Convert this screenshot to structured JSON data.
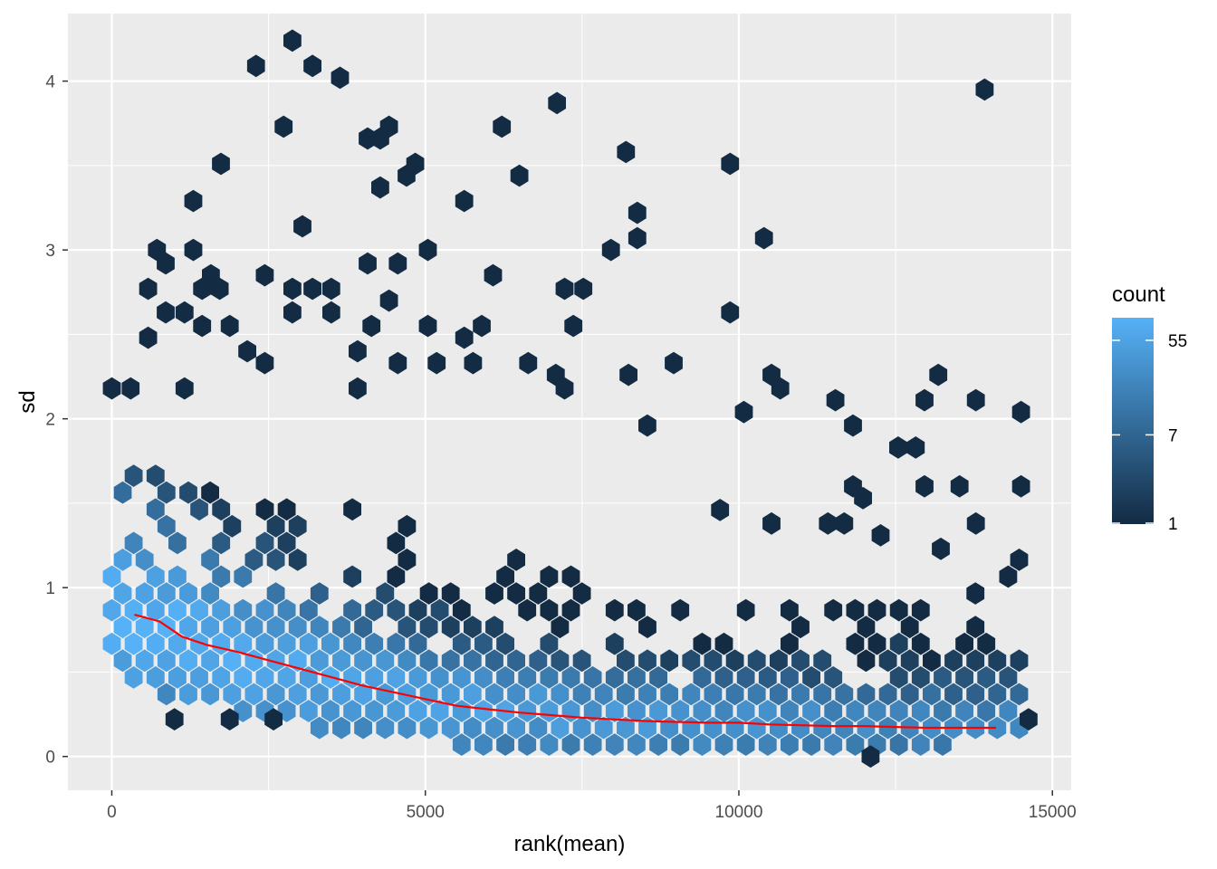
{
  "chart_data": {
    "type": "hexbin",
    "xlabel": "rank(mean)",
    "ylabel": "sd",
    "xlim": [
      -700,
      15300
    ],
    "ylim": [
      -0.2,
      4.4
    ],
    "x_ticks": [
      {
        "value": 0,
        "label": "0"
      },
      {
        "value": 5000,
        "label": "5000"
      },
      {
        "value": 10000,
        "label": "10000"
      },
      {
        "value": 15000,
        "label": "15000"
      }
    ],
    "y_ticks": [
      {
        "value": 0,
        "label": "0"
      },
      {
        "value": 1,
        "label": "1"
      },
      {
        "value": 2,
        "label": "2"
      },
      {
        "value": 3,
        "label": "3"
      },
      {
        "value": 4,
        "label": "4"
      }
    ],
    "grid": true,
    "legend": {
      "title": "count",
      "position": "right",
      "scale": "log",
      "breaks": [
        {
          "value": 1,
          "label": "1"
        },
        {
          "value": 7,
          "label": "7"
        },
        {
          "value": 55,
          "label": "55"
        }
      ],
      "range": [
        1,
        90
      ],
      "color_low": "#132B43",
      "color_high": "#56B1F7"
    },
    "hex_radius": {
      "x": 165,
      "y": 0.0577
    },
    "outlier_points": [
      [
        2880,
        4.24
      ],
      [
        2300,
        4.09
      ],
      [
        3200,
        4.09
      ],
      [
        3640,
        4.02
      ],
      [
        13920,
        3.95
      ],
      [
        7100,
        3.87
      ],
      [
        2740,
        3.73
      ],
      [
        4420,
        3.73
      ],
      [
        6220,
        3.73
      ],
      [
        4080,
        3.66
      ],
      [
        4280,
        3.66
      ],
      [
        8200,
        3.58
      ],
      [
        1740,
        3.51
      ],
      [
        4840,
        3.51
      ],
      [
        9860,
        3.51
      ],
      [
        4700,
        3.44
      ],
      [
        6500,
        3.44
      ],
      [
        4280,
        3.37
      ],
      [
        1300,
        3.29
      ],
      [
        5620,
        3.29
      ],
      [
        8380,
        3.22
      ],
      [
        3040,
        3.14
      ],
      [
        8380,
        3.07
      ],
      [
        10400,
        3.07
      ],
      [
        720,
        3.0
      ],
      [
        1300,
        3.0
      ],
      [
        5040,
        3.0
      ],
      [
        7960,
        3.0
      ],
      [
        860,
        2.92
      ],
      [
        4080,
        2.92
      ],
      [
        4560,
        2.92
      ],
      [
        1580,
        2.85
      ],
      [
        2440,
        2.85
      ],
      [
        6080,
        2.85
      ],
      [
        580,
        2.77
      ],
      [
        1440,
        2.77
      ],
      [
        1720,
        2.77
      ],
      [
        2880,
        2.77
      ],
      [
        3200,
        2.77
      ],
      [
        3500,
        2.77
      ],
      [
        7220,
        2.77
      ],
      [
        7520,
        2.77
      ],
      [
        4420,
        2.7
      ],
      [
        860,
        2.63
      ],
      [
        1160,
        2.63
      ],
      [
        2880,
        2.63
      ],
      [
        3500,
        2.63
      ],
      [
        9860,
        2.63
      ],
      [
        580,
        2.48
      ],
      [
        1440,
        2.55
      ],
      [
        1880,
        2.55
      ],
      [
        4140,
        2.55
      ],
      [
        5040,
        2.55
      ],
      [
        5900,
        2.55
      ],
      [
        7360,
        2.55
      ],
      [
        2160,
        2.4
      ],
      [
        3920,
        2.4
      ],
      [
        5620,
        2.48
      ],
      [
        2440,
        2.33
      ],
      [
        6640,
        2.33
      ],
      [
        8960,
        2.33
      ],
      [
        4560,
        2.33
      ],
      [
        5180,
        2.33
      ],
      [
        5760,
        2.33
      ],
      [
        7080,
        2.26
      ],
      [
        8240,
        2.26
      ],
      [
        10520,
        2.26
      ],
      [
        13180,
        2.26
      ],
      [
        0,
        2.18
      ],
      [
        300,
        2.18
      ],
      [
        1160,
        2.18
      ],
      [
        3920,
        2.18
      ],
      [
        7220,
        2.18
      ],
      [
        10660,
        2.18
      ],
      [
        11540,
        2.11
      ],
      [
        12960,
        2.11
      ],
      [
        13780,
        2.11
      ],
      [
        14500,
        2.04
      ],
      [
        10080,
        2.04
      ],
      [
        8540,
        1.96
      ],
      [
        11820,
        1.96
      ],
      [
        12540,
        1.83
      ],
      [
        12820,
        1.83
      ],
      [
        13780,
        1.38
      ],
      [
        14500,
        1.6
      ],
      [
        11680,
        1.38
      ],
      [
        12260,
        1.31
      ],
      [
        9700,
        1.46
      ],
      [
        10520,
        1.38
      ],
      [
        12100,
        0.0
      ],
      [
        1000,
        0.22
      ],
      [
        14620,
        0.22
      ],
      [
        1880,
        0.22
      ],
      [
        2580,
        0.22
      ],
      [
        12960,
        1.6
      ],
      [
        13520,
        1.6
      ],
      [
        13220,
        1.23
      ],
      [
        11420,
        1.38
      ],
      [
        11820,
        1.6
      ],
      [
        11980,
        1.53
      ]
    ],
    "density_columns": [
      {
        "x": 0,
        "sd_range": [
          0.55,
          1.75
        ],
        "center": 0.85
      },
      {
        "x": 500,
        "sd_range": [
          0.4,
          1.7
        ],
        "center": 0.8
      },
      {
        "x": 1000,
        "sd_range": [
          0.35,
          1.65
        ],
        "center": 0.72
      },
      {
        "x": 2000,
        "sd_range": [
          0.25,
          1.6
        ],
        "center": 0.6
      },
      {
        "x": 3000,
        "sd_range": [
          0.18,
          1.55
        ],
        "center": 0.5
      },
      {
        "x": 4000,
        "sd_range": [
          0.12,
          1.45
        ],
        "center": 0.4
      },
      {
        "x": 5000,
        "sd_range": [
          0.08,
          1.4
        ],
        "center": 0.33
      },
      {
        "x": 6000,
        "sd_range": [
          0.06,
          1.25
        ],
        "center": 0.28
      },
      {
        "x": 7000,
        "sd_range": [
          0.06,
          1.1
        ],
        "center": 0.25
      },
      {
        "x": 8000,
        "sd_range": [
          0.06,
          1.0
        ],
        "center": 0.22
      },
      {
        "x": 9000,
        "sd_range": [
          0.06,
          0.95
        ],
        "center": 0.21
      },
      {
        "x": 10000,
        "sd_range": [
          0.06,
          0.92
        ],
        "center": 0.2
      },
      {
        "x": 11000,
        "sd_range": [
          0.06,
          0.9
        ],
        "center": 0.19
      },
      {
        "x": 12000,
        "sd_range": [
          0.06,
          0.9
        ],
        "center": 0.18
      },
      {
        "x": 13000,
        "sd_range": [
          0.06,
          0.95
        ],
        "center": 0.18
      },
      {
        "x": 14000,
        "sd_range": [
          0.08,
          1.15
        ],
        "center": 0.18
      },
      {
        "x": 14500,
        "sd_range": [
          0.12,
          1.2
        ],
        "center": 0.2
      }
    ],
    "trend_line": {
      "color": "#FF0000",
      "points": [
        [
          360,
          0.84
        ],
        [
          760,
          0.8
        ],
        [
          1120,
          0.71
        ],
        [
          1520,
          0.66
        ],
        [
          2000,
          0.62
        ],
        [
          2500,
          0.57
        ],
        [
          3000,
          0.52
        ],
        [
          3500,
          0.47
        ],
        [
          4000,
          0.42
        ],
        [
          4500,
          0.38
        ],
        [
          5000,
          0.34
        ],
        [
          5500,
          0.3
        ],
        [
          6000,
          0.28
        ],
        [
          6500,
          0.26
        ],
        [
          7000,
          0.245
        ],
        [
          7500,
          0.23
        ],
        [
          8000,
          0.22
        ],
        [
          8500,
          0.21
        ],
        [
          9000,
          0.205
        ],
        [
          9500,
          0.2
        ],
        [
          10000,
          0.2
        ],
        [
          10500,
          0.19
        ],
        [
          11000,
          0.185
        ],
        [
          11500,
          0.18
        ],
        [
          12000,
          0.18
        ],
        [
          12500,
          0.175
        ],
        [
          13000,
          0.17
        ],
        [
          13500,
          0.17
        ],
        [
          14100,
          0.17
        ]
      ]
    }
  }
}
